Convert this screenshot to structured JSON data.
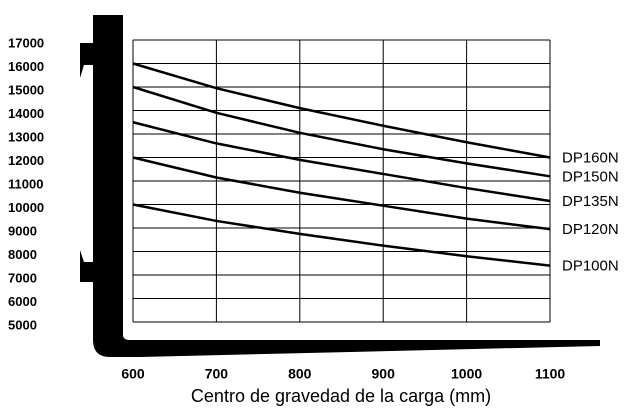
{
  "chart_data": {
    "type": "line",
    "xlabel": "Centro de gravedad de la carga (mm)",
    "x": [
      600,
      700,
      800,
      900,
      1000,
      1100
    ],
    "xlim": [
      600,
      1100
    ],
    "xticks": [
      600,
      700,
      800,
      900,
      1000,
      1100
    ],
    "ylim": [
      5000,
      17000
    ],
    "yticks": [
      5000,
      6000,
      7000,
      8000,
      9000,
      10000,
      11000,
      12000,
      13000,
      14000,
      15000,
      16000,
      17000
    ],
    "grid": true,
    "color": "#000000",
    "series": [
      {
        "name": "DP160N",
        "values": [
          16000,
          14950,
          14100,
          13350,
          12650,
          12000
        ]
      },
      {
        "name": "DP150N",
        "values": [
          15000,
          13900,
          13050,
          12350,
          11750,
          11200
        ]
      },
      {
        "name": "DP135N",
        "values": [
          13500,
          12600,
          11900,
          11300,
          10700,
          10150
        ]
      },
      {
        "name": "DP120N",
        "values": [
          12000,
          11150,
          10500,
          9950,
          9400,
          8950
        ]
      },
      {
        "name": "DP100N",
        "values": [
          10000,
          9300,
          8750,
          8250,
          7800,
          7400
        ]
      }
    ]
  }
}
